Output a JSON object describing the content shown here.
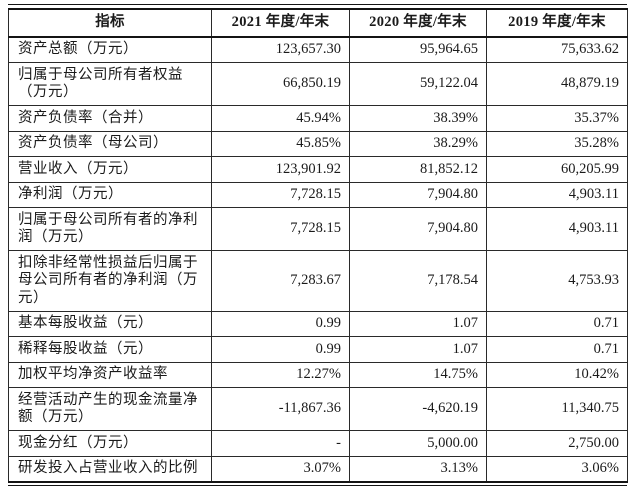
{
  "document": {
    "type": "financial-indicators-table",
    "colors": {
      "background": "#ffffff",
      "text": "#1a1a1a",
      "border": "#141414"
    }
  },
  "table": {
    "columns": [
      "指标",
      "2021 年度/年末",
      "2020 年度/年末",
      "2019 年度/年末"
    ],
    "rows": [
      {
        "label": "资产总额（万元）",
        "y2021": "123,657.30",
        "y2020": "95,964.65",
        "y2019": "75,633.62"
      },
      {
        "label": "归属于母公司所有者权益（万元）",
        "y2021": "66,850.19",
        "y2020": "59,122.04",
        "y2019": "48,879.19"
      },
      {
        "label": "资产负债率（合并）",
        "y2021": "45.94%",
        "y2020": "38.39%",
        "y2019": "35.37%"
      },
      {
        "label": "资产负债率（母公司）",
        "y2021": "45.85%",
        "y2020": "38.29%",
        "y2019": "35.28%"
      },
      {
        "label": "营业收入（万元）",
        "y2021": "123,901.92",
        "y2020": "81,852.12",
        "y2019": "60,205.99"
      },
      {
        "label": "净利润（万元）",
        "y2021": "7,728.15",
        "y2020": "7,904.80",
        "y2019": "4,903.11"
      },
      {
        "label": "归属于母公司所有者的净利润（万元）",
        "y2021": "7,728.15",
        "y2020": "7,904.80",
        "y2019": "4,903.11"
      },
      {
        "label": "扣除非经常性损益后归属于母公司所有者的净利润（万元）",
        "y2021": "7,283.67",
        "y2020": "7,178.54",
        "y2019": "4,753.93"
      },
      {
        "label": "基本每股收益（元）",
        "y2021": "0.99",
        "y2020": "1.07",
        "y2019": "0.71"
      },
      {
        "label": "稀释每股收益（元）",
        "y2021": "0.99",
        "y2020": "1.07",
        "y2019": "0.71"
      },
      {
        "label": "加权平均净资产收益率",
        "y2021": "12.27%",
        "y2020": "14.75%",
        "y2019": "10.42%"
      },
      {
        "label": "经营活动产生的现金流量净额（万元）",
        "y2021": "-11,867.36",
        "y2020": "-4,620.19",
        "y2019": "11,340.75"
      },
      {
        "label": "现金分红（万元）",
        "y2021": "-",
        "y2020": "5,000.00",
        "y2019": "2,750.00"
      },
      {
        "label": "研发投入占营业收入的比例",
        "y2021": "3.07%",
        "y2020": "3.13%",
        "y2019": "3.06%"
      }
    ]
  }
}
